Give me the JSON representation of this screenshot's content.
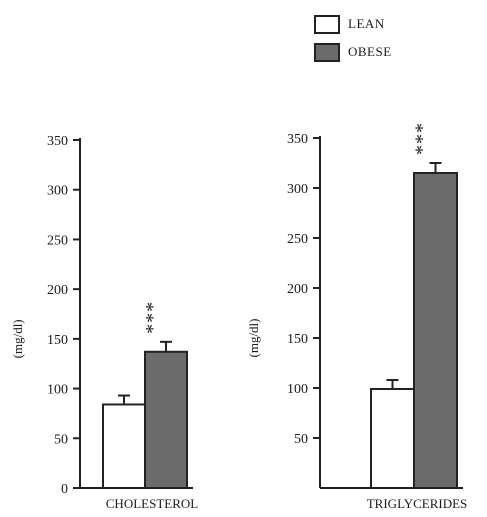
{
  "legend": {
    "items": [
      {
        "label": "LEAN",
        "color": "#ffffff"
      },
      {
        "label": "OBESE",
        "color": "#6b6b6b"
      }
    ]
  },
  "chart_data": [
    {
      "type": "bar",
      "categories": [
        "CHOLESTEROL"
      ],
      "ylabel": "(mg/dl)",
      "ylim": [
        0,
        350
      ],
      "yticks": [
        0,
        50,
        100,
        150,
        200,
        250,
        300,
        350
      ],
      "series": [
        {
          "name": "LEAN",
          "values": [
            84
          ],
          "errors": [
            9
          ],
          "color": "#ffffff",
          "annotation": ""
        },
        {
          "name": "OBESE",
          "values": [
            137
          ],
          "errors": [
            10
          ],
          "color": "#6b6b6b",
          "annotation": "***"
        }
      ]
    },
    {
      "type": "bar",
      "categories": [
        "TRIGLYCERIDES"
      ],
      "ylabel": "(mg/dl)",
      "ylim": [
        0,
        350
      ],
      "yticks": [
        50,
        100,
        150,
        200,
        250,
        300,
        350
      ],
      "series": [
        {
          "name": "LEAN",
          "values": [
            99
          ],
          "errors": [
            9
          ],
          "color": "#ffffff",
          "annotation": ""
        },
        {
          "name": "OBESE",
          "values": [
            315
          ],
          "errors": [
            10
          ],
          "color": "#6b6b6b",
          "annotation": "***"
        }
      ]
    }
  ]
}
